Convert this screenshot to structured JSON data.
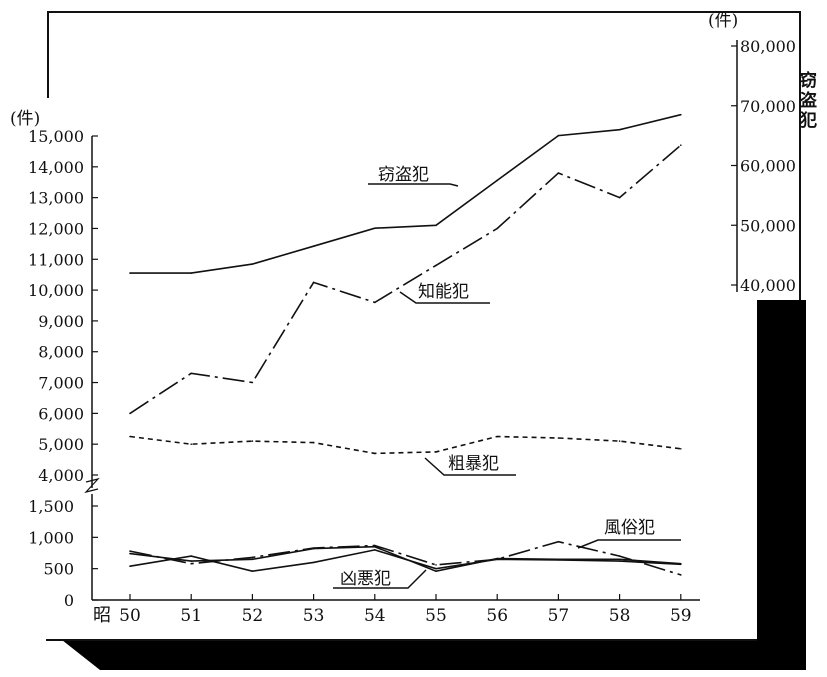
{
  "chart_data": {
    "type": "line",
    "unit_label_left": "(件)",
    "unit_label_right": "(件)",
    "right_axis_title": "窃盗犯",
    "era_label": "昭",
    "categories": [
      "50",
      "51",
      "52",
      "53",
      "54",
      "55",
      "56",
      "57",
      "58",
      "59"
    ],
    "upper_left_axis": {
      "ylim": [
        4000,
        15000
      ],
      "ticks": [
        "15,000",
        "14,000",
        "13,000",
        "12,000",
        "11,000",
        "10,000",
        "9,000",
        "8,000",
        "7,000",
        "6,000",
        "5,000",
        "4,000"
      ]
    },
    "lower_left_axis": {
      "ylim": [
        0,
        1500
      ],
      "ticks": [
        "1,500",
        "1,000",
        "500",
        "0"
      ]
    },
    "right_axis": {
      "ylim": [
        40000,
        80000
      ],
      "ticks": [
        "80,000",
        "70,000",
        "60,000",
        "50,000",
        "40,000"
      ]
    },
    "series": [
      {
        "name": "窃盗犯",
        "axis": "right",
        "style": "solid",
        "values": [
          42000,
          42000,
          43500,
          46500,
          49500,
          50000,
          57500,
          65000,
          66000,
          68500
        ]
      },
      {
        "name": "知能犯",
        "axis": "upper_left",
        "style": "dash-dot",
        "values": [
          6000,
          7300,
          7000,
          10250,
          9600,
          10800,
          12000,
          13800,
          13000,
          14700
        ]
      },
      {
        "name": "粗暴犯",
        "axis": "upper_left",
        "style": "dashed",
        "values": [
          5250,
          5000,
          5100,
          5050,
          4700,
          4750,
          5250,
          5200,
          5100,
          4850
        ]
      },
      {
        "name": "風俗犯",
        "axis": "lower_left",
        "style": "dash-dot",
        "values": [
          780,
          580,
          680,
          830,
          870,
          560,
          650,
          930,
          700,
          400
        ]
      },
      {
        "name": "凶悪犯",
        "axis": "lower_left",
        "style": "solid",
        "values": [
          540,
          700,
          460,
          600,
          800,
          500,
          650,
          640,
          620,
          570
        ]
      },
      {
        "name": "",
        "axis": "lower_left",
        "style": "solid",
        "values": [
          740,
          620,
          650,
          820,
          850,
          460,
          660,
          650,
          650,
          580
        ]
      }
    ]
  }
}
